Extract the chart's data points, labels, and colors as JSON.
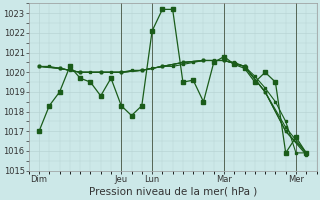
{
  "bg_color": "#cce8e8",
  "grid_color": "#b8d4d4",
  "line_color": "#1a5c1a",
  "xlabel": "Pression niveau de la mer( hPa )",
  "ylim": [
    1015,
    1023.5
  ],
  "yticks": [
    1015,
    1016,
    1017,
    1018,
    1019,
    1020,
    1021,
    1022,
    1023
  ],
  "xtick_labels": [
    "Dim",
    "Jeu",
    "Lun",
    "Mar",
    "Mer"
  ],
  "xtick_positions": [
    0,
    8,
    11,
    18,
    25
  ],
  "xlim": [
    -1,
    27
  ],
  "vline_positions": [
    8,
    11,
    18,
    25
  ],
  "line1_x": [
    0,
    1,
    2,
    3,
    4,
    5,
    6,
    7,
    8,
    9,
    10,
    11,
    12,
    13,
    14,
    15,
    16,
    17,
    18,
    19,
    20,
    21,
    22,
    23,
    24,
    25,
    26
  ],
  "line1_y": [
    1017.0,
    1018.3,
    1019.0,
    1020.3,
    1019.7,
    1019.5,
    1018.8,
    1019.7,
    1018.3,
    1017.8,
    1018.3,
    1022.1,
    1023.2,
    1023.2,
    1019.5,
    1019.6,
    1018.5,
    1020.5,
    1020.8,
    1020.4,
    1020.2,
    1019.5,
    1020.0,
    1019.5,
    1015.9,
    1016.7,
    1015.9
  ],
  "line2_x": [
    0,
    1,
    2,
    3,
    4,
    5,
    6,
    7,
    8,
    9,
    10,
    11,
    12,
    13,
    14,
    15,
    16,
    17,
    18,
    19,
    20,
    21,
    22,
    23,
    24,
    25,
    26
  ],
  "line2_y": [
    1020.3,
    1020.3,
    1020.2,
    1020.1,
    1020.0,
    1020.0,
    1020.0,
    1020.0,
    1020.0,
    1020.1,
    1020.1,
    1020.2,
    1020.3,
    1020.3,
    1020.4,
    1020.5,
    1020.6,
    1020.6,
    1020.6,
    1020.5,
    1020.3,
    1019.8,
    1019.2,
    1018.5,
    1017.5,
    1015.9,
    1015.9
  ],
  "line3_x": [
    0,
    2,
    4,
    6,
    8,
    10,
    12,
    14,
    16,
    18,
    20,
    22,
    24,
    26
  ],
  "line3_y": [
    1020.3,
    1020.2,
    1020.0,
    1020.0,
    1020.0,
    1020.1,
    1020.3,
    1020.5,
    1020.6,
    1020.6,
    1020.3,
    1019.0,
    1017.2,
    1015.9
  ],
  "line4_x": [
    0,
    2,
    4,
    6,
    8,
    10,
    12,
    14,
    16,
    18,
    20,
    22,
    24,
    26
  ],
  "line4_y": [
    1020.3,
    1020.2,
    1020.0,
    1020.0,
    1020.0,
    1020.1,
    1020.3,
    1020.5,
    1020.6,
    1020.6,
    1020.3,
    1019.0,
    1017.0,
    1015.8
  ],
  "line5_x": [
    0,
    2,
    4,
    6,
    8,
    10,
    12,
    14,
    16,
    18,
    20,
    22,
    24,
    26
  ],
  "line5_y": [
    1020.3,
    1020.2,
    1020.0,
    1020.0,
    1020.0,
    1020.1,
    1020.3,
    1020.5,
    1020.6,
    1020.6,
    1020.3,
    1019.0,
    1017.0,
    1015.9
  ],
  "figsize": [
    3.2,
    2.0
  ],
  "dpi": 100,
  "tick_fontsize": 6,
  "xlabel_fontsize": 7.5
}
